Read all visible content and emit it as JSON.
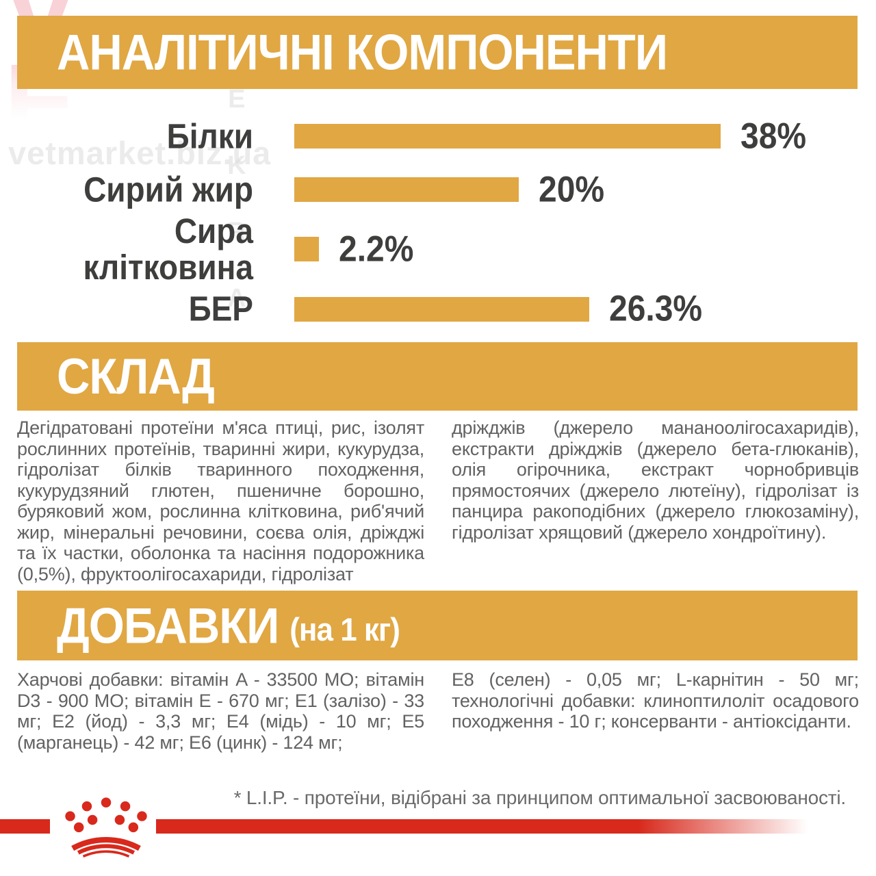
{
  "watermarks": {
    "vet_letters": [
      "V",
      "E",
      "T"
    ],
    "market_letters": [
      "T",
      "E",
      "K",
      "R",
      "A",
      "M"
    ],
    "url": "vetmarket.biz.ua"
  },
  "sections": {
    "analytical": {
      "title": "АНАЛІТИЧНІ КОМПОНЕНТИ"
    },
    "composition": {
      "title": "СКЛАД",
      "col_left": "Дегідратовані протеїни м'яса птиці, рис, ізолят рослинних протеїнів, тваринні жири, кукурудза, гідролізат білків тваринного походження, кукурудзяний глютен, пшеничне борошно, буряковий жом, рослинна клітковина, риб'ячий жир, мінеральні речовини, соєва олія, дріжджі та їх частки, оболонка та насіння подорожника (0,5%), фруктоолігосахариди, гідролізат",
      "col_right": "дріжджів (джерело мананоолігосахаридів), екстракти дріжджів (джерело бета-глюканів), олія огірочника, екстракт чорнобривців прямостоячих (джерело лютеїну), гідролізат із панцира ракоподібних (джерело глюкозаміну), гідролізат хрящовий (джерело хондроїтину)."
    },
    "additives": {
      "title": "ДОБАВКИ",
      "subtitle": "(на 1 кг)",
      "col_left": "Харчові добавки: вітамін A - 33500 МО; вітамін D3 - 900 МО; вітамін E - 670 мг; E1 (залізо) - 33 мг; E2 (йод) - 3,3 мг; E4 (мідь) - 10 мг; E5 (марганець) - 42 мг; E6 (цинк) - 124 мг;",
      "col_right": "E8 (селен) - 0,05 мг; L-карнітин - 50 мг; технологічні добавки: клиноптилоліт осадового походження - 10 г; консерванти - антіоксіданти."
    },
    "footnote": "* L.I.P. - протеїни, відібрані за принципом оптимальної засвоюваності."
  },
  "chart_data": {
    "type": "bar",
    "orientation": "horizontal",
    "title": "АНАЛІТИЧНІ КОМПОНЕНТИ",
    "categories": [
      "Білки",
      "Сирий жир",
      "Сира клітковина",
      "БЕР"
    ],
    "values": [
      38,
      20,
      2.2,
      26.3
    ],
    "value_labels": [
      "38%",
      "20%",
      "2.2%",
      "26.3%"
    ],
    "xlim": [
      0,
      40
    ],
    "bar_color": "#E0A743",
    "grid": false,
    "legend": false
  },
  "colors": {
    "gold": "#E0A743",
    "red": "#D8291C",
    "chart_text": "#3E3E3D",
    "body_text": "#626262",
    "banner_text": "#FFFFFF"
  }
}
